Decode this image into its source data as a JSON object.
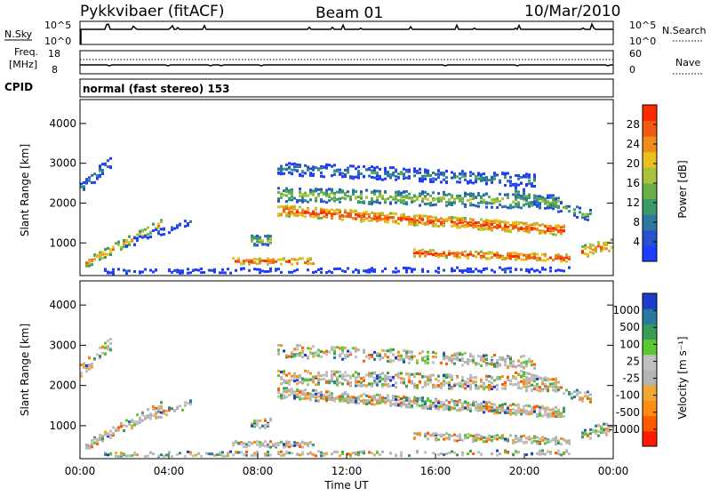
{
  "header": {
    "station": "Pykkvibaer (fitACF)",
    "beam": "Beam 01",
    "date": "10/Mar/2010"
  },
  "strip": {
    "nsky_label": "N.Sky",
    "nsky_ticks": [
      "10^5",
      "10^0"
    ],
    "nsearch_ticks": [
      "10^5",
      "10^0"
    ],
    "nsearch_label": "N.Search",
    "freq_label_1": "Freq.",
    "freq_label_2": "[MHz]",
    "freq_ticks": [
      "18",
      "8"
    ],
    "nave_ticks": [
      "60",
      "0"
    ],
    "nave_label": "Nave",
    "cpid_label": "CPID",
    "cpid_text": "normal (fast stereo) 153"
  },
  "colors": {
    "power": [
      "#1e3cff",
      "#2850d0",
      "#2e78a0",
      "#3a9a68",
      "#6ab04a",
      "#a8c23e",
      "#e8c020",
      "#f08c18",
      "#f05a10",
      "#ff2a00"
    ],
    "velocity": [
      "#ff1a00",
      "#ff5a00",
      "#ff8c10",
      "#f0a830",
      "#b4b4b4",
      "#c0c0c0",
      "#5ac830",
      "#3a9a58",
      "#2878a0",
      "#1e3ccc"
    ]
  },
  "chart_data": [
    {
      "type": "heatmap",
      "panel": "power",
      "xlabel": "",
      "ylabel": "Slant Range [km]",
      "ylim": [
        180,
        4600
      ],
      "yticks": [
        "1000",
        "2000",
        "3000",
        "4000"
      ],
      "colorbar_label": "Power [dB]",
      "colorbar_ticks": [
        "4",
        "8",
        "12",
        "16",
        "20",
        "24",
        "28"
      ],
      "colorbar_range": [
        0,
        32
      ]
    },
    {
      "type": "heatmap",
      "panel": "velocity",
      "xlabel": "Time UT",
      "ylabel": "Slant Range [km]",
      "ylim": [
        180,
        4600
      ],
      "yticks": [
        "1000",
        "2000",
        "3000",
        "4000"
      ],
      "xticks": [
        "00:00",
        "04:00",
        "08:00",
        "12:00",
        "16:00",
        "20:00",
        "00:00"
      ],
      "colorbar_label": "Velocity [m s⁻¹]",
      "colorbar_ticks": [
        "1000",
        "500",
        "100",
        "25",
        "-25",
        "-100",
        "-500",
        "-1000"
      ]
    }
  ]
}
